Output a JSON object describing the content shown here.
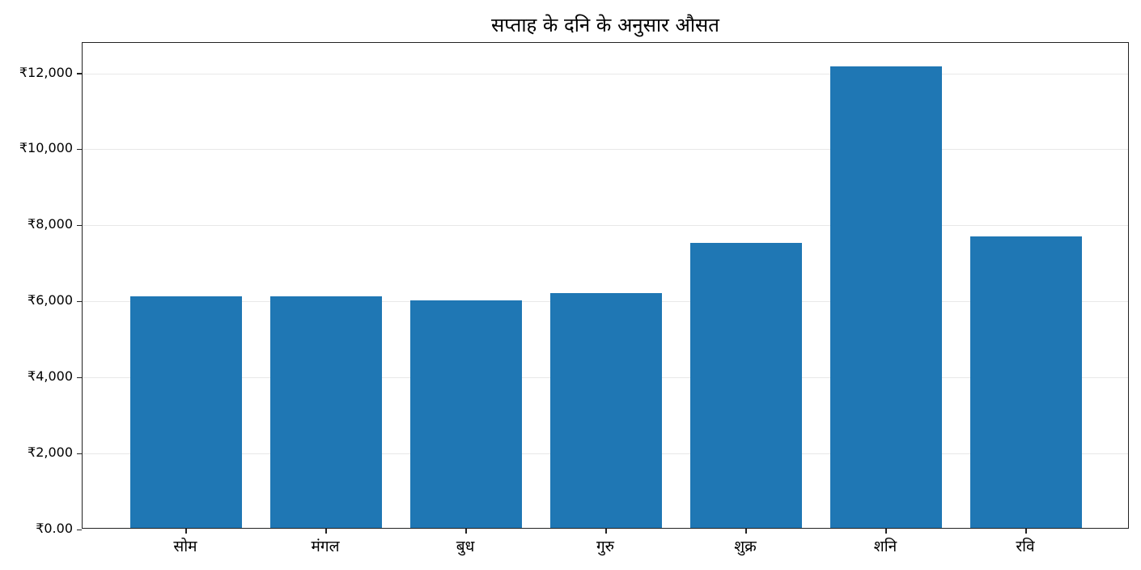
{
  "chart_data": {
    "type": "bar",
    "title": "सप्ताह के दनि के अनुसार औसत",
    "xlabel": "",
    "ylabel": "",
    "categories": [
      "सोम",
      "मंगल",
      "बुध",
      "गुरु",
      "शुक्र",
      "शनि",
      "रवि"
    ],
    "values": [
      6100,
      6100,
      5980,
      6170,
      7490,
      12150,
      7660
    ],
    "ylim": [
      0,
      12800
    ],
    "yticks": [
      0,
      2000,
      4000,
      6000,
      8000,
      10000,
      12000
    ],
    "ytick_labels": [
      "₹0.00",
      "₹2,000",
      "₹4,000",
      "₹6,000",
      "₹8,000",
      "₹10,000",
      "₹12,000"
    ],
    "grid": true,
    "legend": null,
    "bar_color": "#1f77b4"
  }
}
